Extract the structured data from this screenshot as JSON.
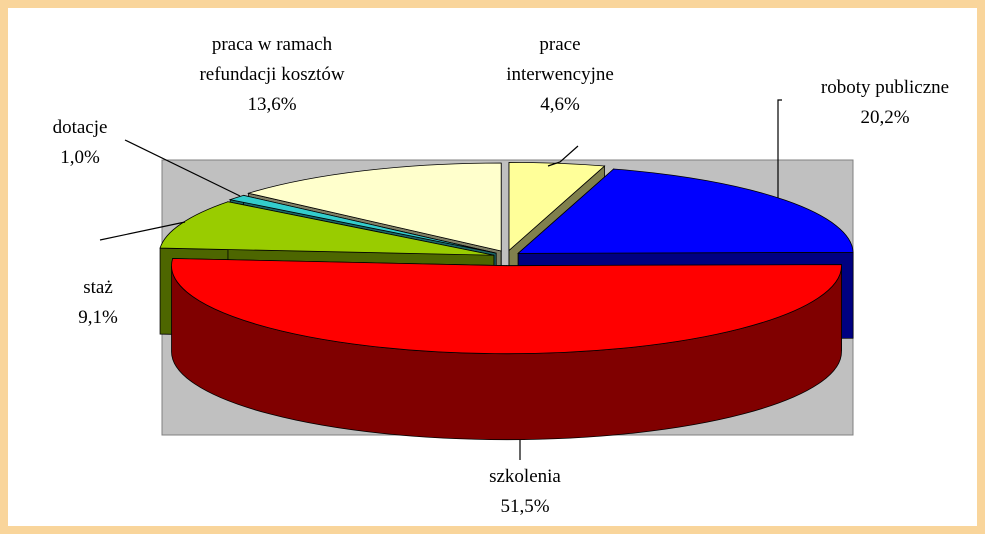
{
  "chart_data": {
    "type": "pie3d",
    "categories": [
      "prace interwencyjne",
      "roboty publiczne",
      "szkolenia",
      "staż",
      "dotacje",
      "praca w ramach refundacji kosztów"
    ],
    "values": [
      4.6,
      20.2,
      51.5,
      9.1,
      1.0,
      13.6
    ],
    "value_labels": [
      "4,6%",
      "20,2%",
      "51,5%",
      "9,1%",
      "1,0%",
      "13,6%"
    ],
    "colors": [
      "#ffff99",
      "#0000ff",
      "#ff0000",
      "#99cc00",
      "#33cccc",
      "#ffffcc"
    ]
  }
}
